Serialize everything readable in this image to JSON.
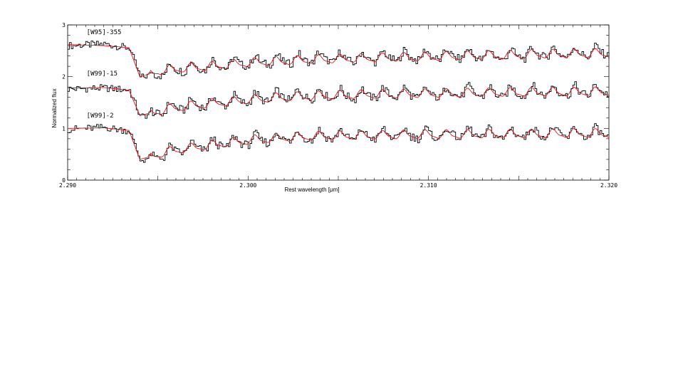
{
  "chart_data": {
    "type": "line",
    "xlabel": "Rest wavelength [μm]",
    "ylabel": "Normalized flux",
    "xlim": [
      2.29,
      2.32
    ],
    "ylim": [
      0,
      3
    ],
    "xticks": [
      {
        "value": 2.29,
        "label": "2.290"
      },
      {
        "value": 2.3,
        "label": "2.300"
      },
      {
        "value": 2.31,
        "label": "2.310"
      },
      {
        "value": 2.32,
        "label": "2.320"
      }
    ],
    "yticks": [
      {
        "value": 0,
        "label": "0"
      },
      {
        "value": 1,
        "label": "1"
      },
      {
        "value": 2,
        "label": "2"
      },
      {
        "value": 3,
        "label": "3"
      }
    ],
    "grid": false,
    "colors": {
      "observed": "#000000",
      "model": "#e8141e"
    },
    "series": [
      {
        "name": "[W95]-355",
        "label": "[W95]-355",
        "label_x": 2.2905,
        "label_y": 2.82,
        "x": [
          2.29,
          2.292,
          2.2934,
          2.294,
          2.295,
          2.296,
          2.298,
          2.3,
          2.302,
          2.304,
          2.306,
          2.308,
          2.31,
          2.312,
          2.314,
          2.316,
          2.318,
          2.32
        ],
        "model": [
          2.62,
          2.6,
          2.56,
          2.0,
          2.1,
          2.15,
          2.2,
          2.27,
          2.3,
          2.33,
          2.35,
          2.37,
          2.38,
          2.4,
          2.41,
          2.43,
          2.44,
          2.45
        ],
        "observed": [
          2.6,
          2.63,
          2.55,
          1.98,
          2.08,
          2.16,
          2.22,
          2.28,
          2.32,
          2.36,
          2.35,
          2.38,
          2.4,
          2.42,
          2.4,
          2.45,
          2.46,
          2.48
        ]
      },
      {
        "name": "[W99]-15",
        "label": "[W99]-15",
        "label_x": 2.2905,
        "label_y": 2.02,
        "x": [
          2.29,
          2.292,
          2.2934,
          2.294,
          2.295,
          2.296,
          2.298,
          2.3,
          2.302,
          2.304,
          2.306,
          2.308,
          2.31,
          2.312,
          2.314,
          2.316,
          2.318,
          2.32
        ],
        "model": [
          1.78,
          1.79,
          1.74,
          1.25,
          1.33,
          1.4,
          1.48,
          1.55,
          1.6,
          1.63,
          1.65,
          1.66,
          1.67,
          1.68,
          1.69,
          1.7,
          1.7,
          1.71
        ],
        "observed": [
          1.76,
          1.78,
          1.74,
          1.22,
          1.33,
          1.42,
          1.49,
          1.56,
          1.62,
          1.66,
          1.64,
          1.68,
          1.66,
          1.7,
          1.68,
          1.72,
          1.71,
          1.73
        ]
      },
      {
        "name": "[W99]-2",
        "label": "[W99]-2",
        "label_x": 2.2905,
        "label_y": 1.21,
        "x": [
          2.29,
          2.292,
          2.2934,
          2.294,
          2.295,
          2.296,
          2.298,
          2.3,
          2.302,
          2.304,
          2.306,
          2.308,
          2.31,
          2.312,
          2.314,
          2.316,
          2.318,
          2.32
        ],
        "model": [
          1.0,
          1.01,
          0.96,
          0.4,
          0.5,
          0.58,
          0.68,
          0.77,
          0.82,
          0.85,
          0.86,
          0.87,
          0.88,
          0.88,
          0.89,
          0.89,
          0.9,
          0.9
        ],
        "observed": [
          0.98,
          1.02,
          0.95,
          0.38,
          0.48,
          0.58,
          0.68,
          0.76,
          0.82,
          0.86,
          0.86,
          0.88,
          0.88,
          0.9,
          0.88,
          0.92,
          0.9,
          0.9
        ]
      }
    ]
  }
}
